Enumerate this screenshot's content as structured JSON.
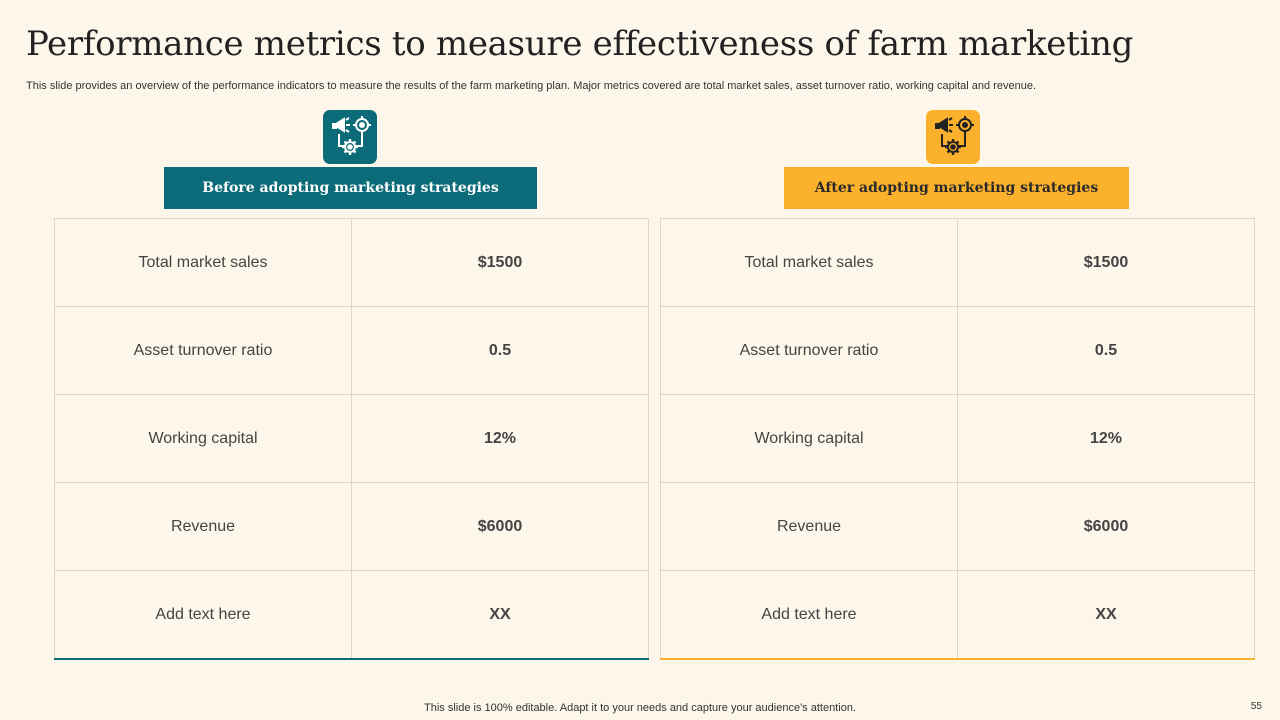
{
  "slide": {
    "title": "Performance metrics to measure effectiveness of farm marketing",
    "subtitle": "This slide provides an overview of the performance indicators to measure the results of the farm marketing plan. Major metrics covered are total market sales, asset turnover ratio, working capital and revenue.",
    "footer": "This slide is 100% editable. Adapt it to your needs and capture your audience's attention.",
    "page_number": "55"
  },
  "colors": {
    "background": "#fcf7ea",
    "before_accent": "#0b6b78",
    "after_accent": "#fbb12c",
    "grid": "#dcd6c8"
  },
  "before": {
    "icon": "marketing-target-gear-icon",
    "header": "Before  adopting marketing strategies",
    "rows": [
      {
        "metric": "Total market sales",
        "value": "$1500"
      },
      {
        "metric": "Asset turnover  ratio",
        "value": "0.5"
      },
      {
        "metric": "Working capital",
        "value": "12%"
      },
      {
        "metric": "Revenue",
        "value": "$6000"
      },
      {
        "metric": "Add text here",
        "value": "XX"
      }
    ]
  },
  "after": {
    "icon": "marketing-target-gear-icon",
    "header": "After adopting marketing strategies",
    "rows": [
      {
        "metric": "Total market sales",
        "value": "$1500"
      },
      {
        "metric": "Asset turnover  ratio",
        "value": "0.5"
      },
      {
        "metric": "Working capital",
        "value": "12%"
      },
      {
        "metric": "Revenue",
        "value": "$6000"
      },
      {
        "metric": "Add text here",
        "value": "XX"
      }
    ]
  }
}
